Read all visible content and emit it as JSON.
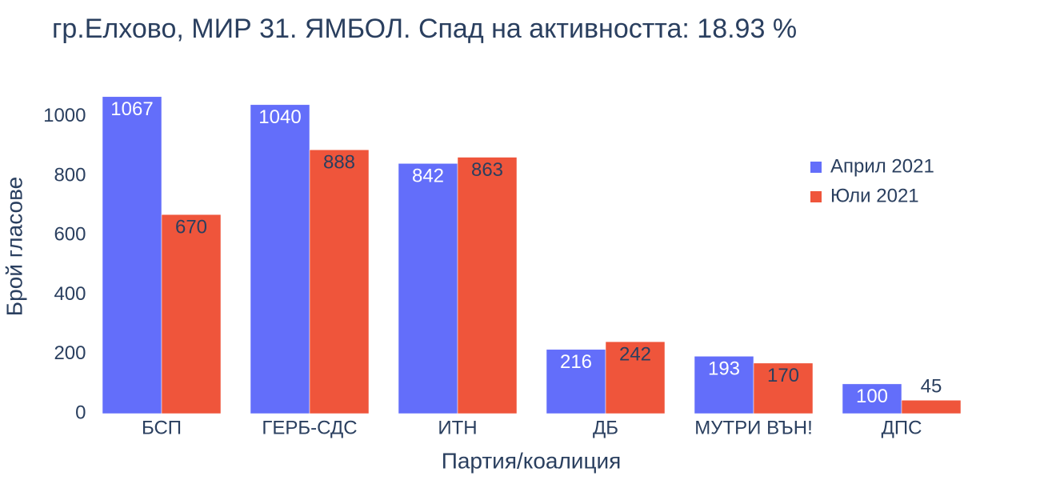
{
  "chart_data": {
    "type": "bar",
    "title": "гр.Елхово, МИР 31. ЯМБОЛ. Спад на активността: 18.93 %",
    "x_label": "Партия/коалиция",
    "y_label": "Брой гласове",
    "categories": [
      "БСП",
      "ГЕРБ-СДС",
      "ИТН",
      "ДБ",
      "МУТРИ ВЪН!",
      "ДПС"
    ],
    "series": [
      {
        "name": "Април 2021",
        "color": "#636efa",
        "values": [
          1067,
          1040,
          842,
          216,
          193,
          100
        ]
      },
      {
        "name": "Юли 2021",
        "color": "#ef553b",
        "values": [
          670,
          888,
          863,
          242,
          170,
          45
        ]
      }
    ],
    "ylim": [
      0,
      1123
    ],
    "yticks": [
      0,
      200,
      400,
      600,
      800,
      1000
    ],
    "grid": false
  }
}
